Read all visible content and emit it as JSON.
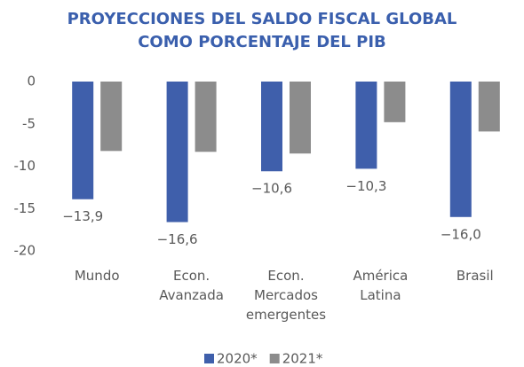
{
  "chart_data": {
    "type": "bar",
    "title": [
      "PROYECCIONES DEL SALDO FISCAL GLOBAL",
      "COMO PORCENTAJE DEL PIB"
    ],
    "categories": [
      "Mundo",
      "Econ. Avanzada",
      "Econ. Mercados emergentes",
      "América Latina",
      "Brasil"
    ],
    "series": [
      {
        "name": "2020*",
        "color": "#3f5fab",
        "values": [
          -13.9,
          -16.6,
          -10.6,
          -10.3,
          -16.0
        ],
        "value_labels": [
          "−13,9",
          "−16,6",
          "−10,6",
          "−10,3",
          "−16,0"
        ]
      },
      {
        "name": "2021*",
        "color": "#8c8c8c",
        "values": [
          -8.2,
          -8.3,
          -8.5,
          -4.8,
          -5.9
        ]
      }
    ],
    "ylim": [
      0,
      -20
    ],
    "yticks": [
      0,
      -5,
      -10,
      -15,
      -20
    ],
    "grid": false,
    "legend": "bottom"
  }
}
